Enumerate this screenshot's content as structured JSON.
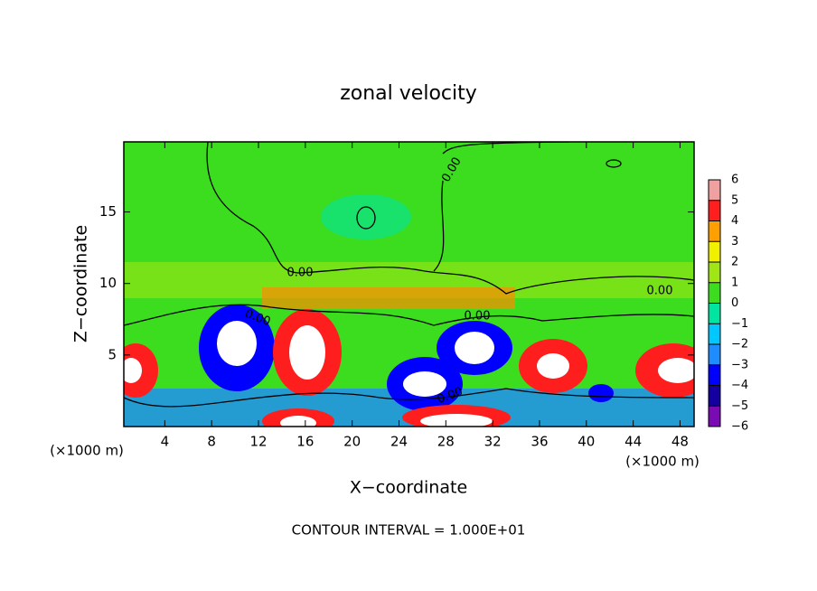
{
  "chart_data": {
    "type": "contour",
    "title": "zonal velocity",
    "x_label": "X−coordinate",
    "y_label": "Z−coordinate",
    "x_unit": "(×1000 m)",
    "footer": "CONTOUR INTERVAL = 1.000E+01",
    "xlim": [
      0.5,
      49.2
    ],
    "ylim": [
      0,
      19.9
    ],
    "xticks": [
      4,
      8,
      12,
      16,
      20,
      24,
      28,
      32,
      36,
      40,
      44,
      48
    ],
    "yticks": [
      5,
      10,
      15
    ],
    "clim": [
      -6,
      6
    ],
    "cticks": [
      {
        "value": -6,
        "label": "−6"
      },
      {
        "value": -5,
        "label": "−5"
      },
      {
        "value": -4,
        "label": "−4"
      },
      {
        "value": -3,
        "label": "−3"
      },
      {
        "value": -2,
        "label": "−2"
      },
      {
        "value": -1,
        "label": "−1"
      },
      0,
      1,
      2,
      3,
      4,
      5,
      6
    ],
    "colors": [
      "#7a0ab4",
      "#1400a0",
      "#0000ff",
      "#1e8cff",
      "#00c8ff",
      "#00e6a0",
      "#3cdc1e",
      "#a0e614",
      "#f0f000",
      "#ffa000",
      "#ff1e1e",
      "#f0a0a0"
    ],
    "contour_labels": [
      "0.00",
      "0.00",
      "0.00",
      "0.00",
      "0.00",
      "0.00"
    ]
  }
}
